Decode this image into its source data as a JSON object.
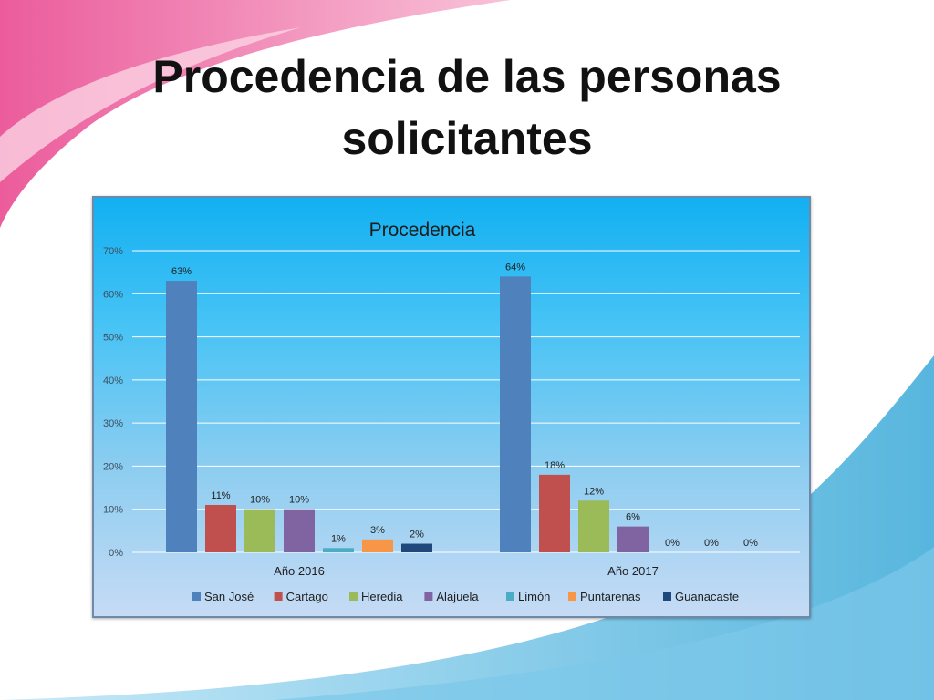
{
  "slide": {
    "title_line1": "Procedencia de las personas",
    "title_line2": "solicitantes"
  },
  "chart_data": {
    "type": "bar",
    "title": "Procedencia",
    "categories": [
      "Año 2016",
      "Año 2017"
    ],
    "y_ticks": [
      "0%",
      "10%",
      "20%",
      "30%",
      "40%",
      "50%",
      "60%",
      "70%"
    ],
    "ylim": [
      0,
      70
    ],
    "grid": true,
    "legend_position": "bottom",
    "series": [
      {
        "name": "San José",
        "color": "#4f81bd",
        "values": [
          63,
          64
        ],
        "labels": [
          "63%",
          "64%"
        ]
      },
      {
        "name": "Cartago",
        "color": "#c0504d",
        "values": [
          11,
          18
        ],
        "labels": [
          "11%",
          "18%"
        ]
      },
      {
        "name": "Heredia",
        "color": "#9bbb59",
        "values": [
          10,
          12
        ],
        "labels": [
          "10%",
          "12%"
        ]
      },
      {
        "name": "Alajuela",
        "color": "#8064a2",
        "values": [
          10,
          6
        ],
        "labels": [
          "10%",
          "6%"
        ]
      },
      {
        "name": "Limón",
        "color": "#4bacc6",
        "values": [
          1,
          0
        ],
        "labels": [
          "1%",
          "0%"
        ]
      },
      {
        "name": "Puntarenas",
        "color": "#f79646",
        "values": [
          3,
          0
        ],
        "labels": [
          "3%",
          "0%"
        ]
      },
      {
        "name": "Guanacaste",
        "color": "#1f497d",
        "values": [
          2,
          0
        ],
        "labels": [
          "2%",
          "0%"
        ]
      }
    ]
  }
}
